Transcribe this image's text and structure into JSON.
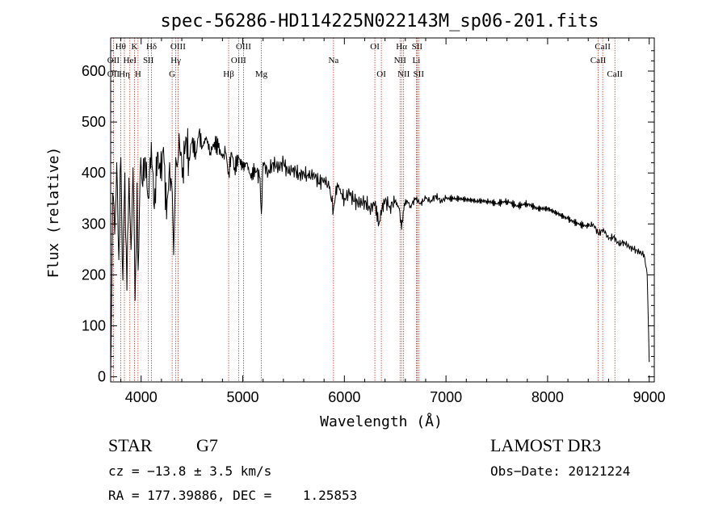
{
  "chart_data": {
    "type": "line",
    "title": "spec-56286-HD114225N022143M_sp06-201.fits",
    "xlabel": "Wavelength (Å)",
    "ylabel": "Flux (relative)",
    "xlim": [
      3700,
      9050
    ],
    "ylim": [
      -10,
      665
    ],
    "xticks": [
      4000,
      5000,
      6000,
      7000,
      8000,
      9000
    ],
    "xtick_labels": [
      "4000",
      "5000",
      "6000",
      "7000",
      "8000",
      "9000"
    ],
    "yticks": [
      0,
      100,
      200,
      300,
      400,
      500,
      600
    ],
    "ytick_labels": [
      "0",
      "100",
      "200",
      "300",
      "400",
      "500",
      "600"
    ],
    "series": [
      {
        "name": "flux",
        "x": [
          3700,
          3720,
          3740,
          3760,
          3780,
          3800,
          3820,
          3840,
          3860,
          3880,
          3900,
          3920,
          3940,
          3960,
          3970,
          3990,
          4010,
          4040,
          4070,
          4100,
          4130,
          4160,
          4190,
          4220,
          4250,
          4280,
          4300,
          4320,
          4340,
          4360,
          4380,
          4410,
          4440,
          4470,
          4500,
          4540,
          4570,
          4600,
          4640,
          4680,
          4720,
          4760,
          4800,
          4830,
          4861,
          4890,
          4920,
          4960,
          5000,
          5040,
          5080,
          5120,
          5170,
          5183,
          5200,
          5250,
          5300,
          5350,
          5400,
          5450,
          5500,
          5550,
          5600,
          5650,
          5700,
          5750,
          5800,
          5850,
          5893,
          5930,
          5970,
          6000,
          6050,
          6100,
          6150,
          6200,
          6250,
          6300,
          6340,
          6370,
          6400,
          6450,
          6500,
          6540,
          6563,
          6590,
          6620,
          6650,
          6700,
          6750,
          6800,
          6850,
          6900,
          6950,
          7000,
          7100,
          7200,
          7300,
          7400,
          7500,
          7600,
          7700,
          7800,
          7900,
          8000,
          8100,
          8200,
          8300,
          8400,
          8450,
          8500,
          8550,
          8600,
          8650,
          8700,
          8750,
          8800,
          8850,
          8900,
          8950,
          8980,
          9000
        ],
        "values": [
          5,
          360,
          280,
          420,
          230,
          430,
          190,
          400,
          170,
          390,
          250,
          410,
          150,
          380,
          210,
          400,
          380,
          430,
          350,
          460,
          330,
          440,
          390,
          450,
          310,
          420,
          380,
          240,
          430,
          420,
          450,
          410,
          470,
          430,
          460,
          440,
          480,
          450,
          470,
          440,
          460,
          450,
          430,
          440,
          400,
          440,
          410,
          430,
          410,
          420,
          390,
          410,
          390,
          320,
          420,
          400,
          420,
          410,
          420,
          400,
          410,
          395,
          400,
          390,
          400,
          380,
          390,
          370,
          330,
          380,
          360,
          350,
          360,
          345,
          340,
          345,
          330,
          340,
          300,
          330,
          345,
          335,
          345,
          330,
          290,
          340,
          345,
          335,
          350,
          340,
          350,
          345,
          355,
          345,
          350,
          350,
          348,
          345,
          345,
          340,
          345,
          335,
          340,
          330,
          330,
          320,
          310,
          300,
          295,
          300,
          280,
          290,
          270,
          275,
          260,
          265,
          255,
          250,
          245,
          240,
          200,
          30
        ]
      }
    ],
    "line_labels": [
      {
        "text": "OII",
        "x": 3727,
        "row": 2
      },
      {
        "text": "OII",
        "x": 3727,
        "row": 3
      },
      {
        "text": "Hθ",
        "x": 3798,
        "row": 1
      },
      {
        "text": "HeI",
        "x": 3889,
        "row": 2
      },
      {
        "text": "Hη",
        "x": 3835,
        "row": 3
      },
      {
        "text": "K",
        "x": 3934,
        "row": 1
      },
      {
        "text": "SII",
        "x": 4071,
        "row": 2
      },
      {
        "text": "H",
        "x": 3969,
        "row": 3
      },
      {
        "text": "Hδ",
        "x": 4102,
        "row": 1
      },
      {
        "text": "OIII",
        "x": 4363,
        "row": 1
      },
      {
        "text": "Hγ",
        "x": 4341,
        "row": 2
      },
      {
        "text": "G",
        "x": 4305,
        "row": 3
      },
      {
        "text": "Hβ",
        "x": 4861,
        "row": 3
      },
      {
        "text": "OIII",
        "x": 5007,
        "row": 1
      },
      {
        "text": "OIII",
        "x": 4959,
        "row": 2
      },
      {
        "text": "Mg",
        "x": 5183,
        "row": 3
      },
      {
        "text": "Na",
        "x": 5893,
        "row": 2
      },
      {
        "text": "OI",
        "x": 6300,
        "row": 1
      },
      {
        "text": "OI",
        "x": 6364,
        "row": 3
      },
      {
        "text": "Hα",
        "x": 6563,
        "row": 1
      },
      {
        "text": "NII",
        "x": 6548,
        "row": 2
      },
      {
        "text": "NII",
        "x": 6583,
        "row": 3
      },
      {
        "text": "SII",
        "x": 6716,
        "row": 1
      },
      {
        "text": "Li",
        "x": 6708,
        "row": 2
      },
      {
        "text": "SII",
        "x": 6731,
        "row": 3
      },
      {
        "text": "CaII",
        "x": 8542,
        "row": 1
      },
      {
        "text": "CaII",
        "x": 8498,
        "row": 2
      },
      {
        "text": "CaII",
        "x": 8662,
        "row": 3
      }
    ],
    "reference_lines": [
      3727,
      3798,
      3835,
      3889,
      3934,
      3969,
      4071,
      4102,
      4305,
      4341,
      4363,
      4861,
      4959,
      5007,
      5183,
      5893,
      6300,
      6364,
      6548,
      6563,
      6583,
      6708,
      6716,
      6731,
      8498,
      8542,
      8662
    ],
    "grid": false,
    "line_color": "#000000",
    "reference_line_color": "#c0392b"
  },
  "info": {
    "object_class": "STAR",
    "subclass": "G7",
    "cz": "cz = −13.8 ± 3.5 km/s",
    "coords": "RA = 177.39886, DEC =    1.25853",
    "survey": "LAMOST DR3",
    "obs_date": "Obs−Date: 20121224"
  }
}
